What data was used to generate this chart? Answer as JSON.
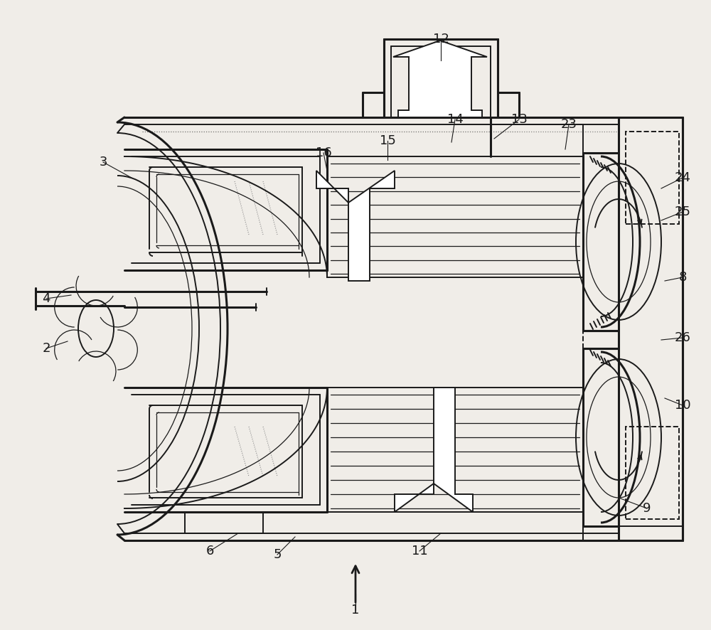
{
  "bg_color": "#f0ede8",
  "line_color": "#1a1a1a",
  "lw_thick": 2.2,
  "lw_main": 1.4,
  "lw_thin": 0.9,
  "label_fs": 13,
  "labels": {
    "1": [
      500,
      858,
      500,
      835
    ],
    "2": [
      65,
      490,
      95,
      480
    ],
    "3": [
      145,
      228,
      185,
      250
    ],
    "4": [
      65,
      420,
      100,
      415
    ],
    "5": [
      390,
      780,
      415,
      755
    ],
    "6": [
      295,
      775,
      335,
      750
    ],
    "8": [
      960,
      390,
      935,
      395
    ],
    "9": [
      910,
      715,
      870,
      700
    ],
    "10": [
      960,
      570,
      935,
      560
    ],
    "11": [
      590,
      775,
      620,
      750
    ],
    "12": [
      620,
      55,
      620,
      85
    ],
    "13": [
      730,
      168,
      695,
      195
    ],
    "14": [
      640,
      168,
      635,
      200
    ],
    "15": [
      545,
      198,
      545,
      225
    ],
    "16": [
      455,
      215,
      460,
      240
    ],
    "23": [
      800,
      175,
      795,
      210
    ],
    "24": [
      960,
      250,
      930,
      265
    ],
    "25": [
      960,
      298,
      930,
      310
    ],
    "26": [
      960,
      475,
      930,
      478
    ]
  }
}
